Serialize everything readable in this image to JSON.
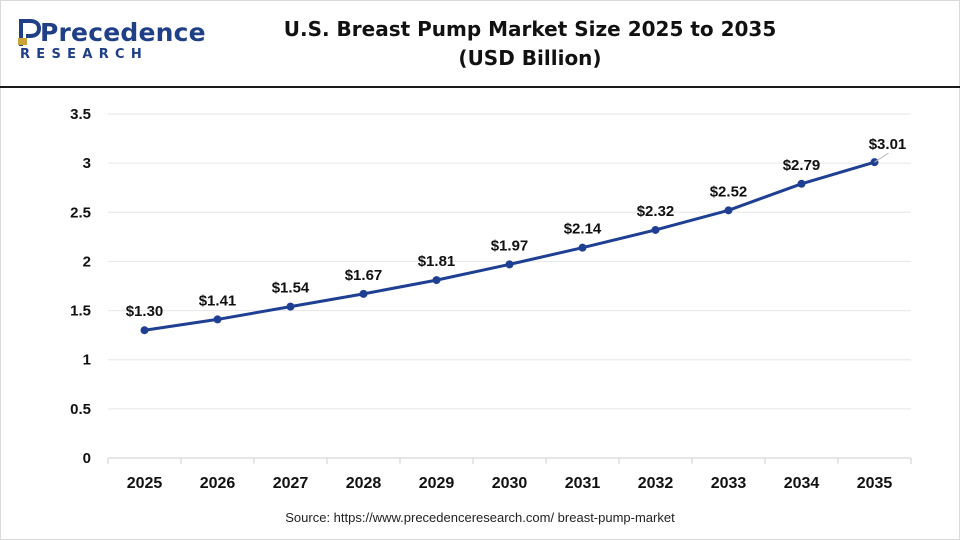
{
  "brand": {
    "name": "Precedence",
    "tagline": "RESEARCH",
    "color": "#1f3f86"
  },
  "title": {
    "line1": "U.S. Breast Pump Market Size 2025 to 2035",
    "line2": "(USD Billion)"
  },
  "source": "Source: https://www.precedenceresearch.com/ breast-pump-market",
  "chart_data": {
    "type": "line",
    "categories": [
      "2025",
      "2026",
      "2027",
      "2028",
      "2029",
      "2030",
      "2031",
      "2032",
      "2033",
      "2034",
      "2035"
    ],
    "series": [
      {
        "values": [
          1.3,
          1.41,
          1.54,
          1.67,
          1.81,
          1.97,
          2.14,
          2.32,
          2.52,
          2.79,
          3.01
        ],
        "labels": [
          "$1.30",
          "$1.41",
          "$1.54",
          "$1.67",
          "$1.81",
          "$1.97",
          "$2.14",
          "$2.32",
          "$2.52",
          "$2.79",
          "$3.01"
        ],
        "color": "#1f3f93"
      }
    ],
    "y_ticks": [
      "0",
      "0.5",
      "1",
      "1.5",
      "2",
      "2.5",
      "3",
      "3.5"
    ],
    "ylim": [
      0,
      3.5
    ],
    "grid": true,
    "legend": "none"
  }
}
